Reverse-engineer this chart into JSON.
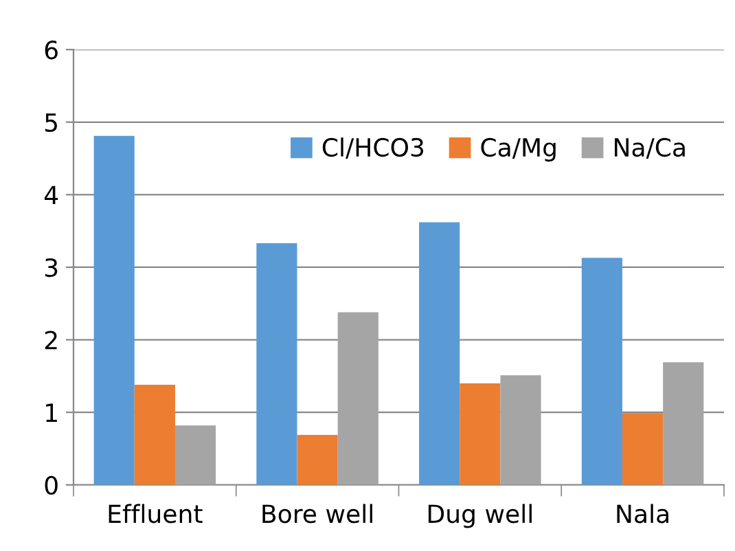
{
  "chart_data": {
    "type": "bar",
    "categories": [
      "Effluent",
      "Bore well",
      "Dug well",
      "Nala"
    ],
    "series": [
      {
        "name": "Cl/HCO3",
        "color": "#5b9bd5",
        "values": [
          4.81,
          3.33,
          3.62,
          3.13
        ]
      },
      {
        "name": "Ca/Mg",
        "color": "#ed7d31",
        "values": [
          1.38,
          0.69,
          1.4,
          0.99
        ]
      },
      {
        "name": "Na/Ca",
        "color": "#a5a5a5",
        "values": [
          0.82,
          2.38,
          1.51,
          1.69
        ]
      }
    ],
    "ylim": [
      0,
      6
    ],
    "yticks": [
      0,
      1,
      2,
      3,
      4,
      5,
      6
    ],
    "grid": "y",
    "legend": "top right"
  }
}
